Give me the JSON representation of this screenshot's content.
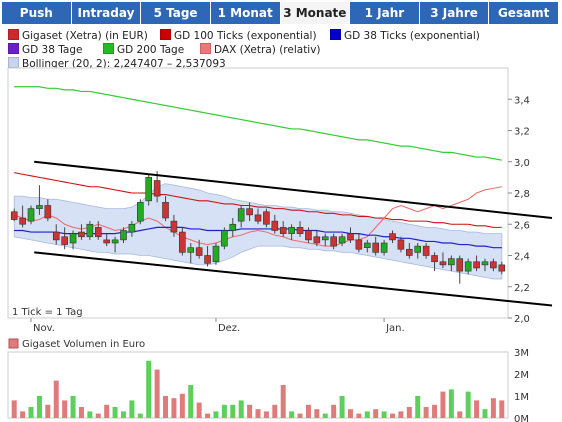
{
  "tabs": [
    {
      "label": "Push",
      "active": false
    },
    {
      "label": "Intraday",
      "active": false
    },
    {
      "label": "5 Tage",
      "active": false
    },
    {
      "label": "1 Monat",
      "active": false
    },
    {
      "label": "3 Monate",
      "active": true
    },
    {
      "label": "1 Jahr",
      "active": false
    },
    {
      "label": "3 Jahre",
      "active": false
    },
    {
      "label": "Gesamt",
      "active": false
    }
  ],
  "legend": {
    "row1": [
      {
        "label": "Gigaset (Xetra) (in EUR)",
        "color": "#cc2a2a"
      },
      {
        "label": "GD 100 Ticks (exponential)",
        "color": "#cc0000"
      },
      {
        "label": "GD 38 Ticks (exponential)",
        "color": "#0000cc"
      }
    ],
    "row2": [
      {
        "label": "GD 38 Tage",
        "color": "#6a1fc8"
      },
      {
        "label": "GD 200 Tage",
        "color": "#22bb22"
      },
      {
        "label": "DAX (Xetra) (relativ)",
        "color": "#ee7777"
      }
    ],
    "row3": [
      {
        "label": "Bollinger (20, 2): 2,247407 – 2,537093",
        "color": "#c8d4ef"
      }
    ]
  },
  "tick_note": "1 Tick = 1 Tag",
  "volume_title": "Gigaset Volumen in Euro",
  "colors": {
    "up": "#22aa22",
    "down": "#cc3333",
    "ma38": "#2020cc",
    "ma100": "#cc1111",
    "ma200": "#33cc33",
    "dax": "#ee6666",
    "boll": "#d6e1f6",
    "boll_edge": "#a9badf",
    "vol": "#e07b7b",
    "vol_up": "#5ccf5c"
  },
  "chart_data": [
    {
      "type": "candlestick",
      "title": "",
      "x_labels": [
        "Nov.",
        "Dez.",
        "Jan."
      ],
      "ylim": [
        2.0,
        3.6
      ],
      "y_ticks": [
        "2,0",
        "2,2",
        "2,4",
        "2,6",
        "2,8",
        "3,0",
        "3,2",
        "3,4"
      ],
      "y_tick_values": [
        2.0,
        2.2,
        2.4,
        2.6,
        2.8,
        3.0,
        3.2,
        3.4
      ],
      "candles": [
        [
          2.68,
          2.7,
          2.62,
          2.63
        ],
        [
          2.64,
          2.72,
          2.58,
          2.6
        ],
        [
          2.62,
          2.72,
          2.6,
          2.7
        ],
        [
          2.7,
          2.85,
          2.66,
          2.72
        ],
        [
          2.72,
          2.76,
          2.62,
          2.64
        ],
        [
          2.55,
          2.6,
          2.47,
          2.5
        ],
        [
          2.52,
          2.58,
          2.44,
          2.47
        ],
        [
          2.48,
          2.56,
          2.44,
          2.54
        ],
        [
          2.55,
          2.6,
          2.5,
          2.52
        ],
        [
          2.52,
          2.62,
          2.5,
          2.6
        ],
        [
          2.58,
          2.62,
          2.5,
          2.52
        ],
        [
          2.5,
          2.54,
          2.46,
          2.48
        ],
        [
          2.48,
          2.52,
          2.42,
          2.5
        ],
        [
          2.5,
          2.58,
          2.48,
          2.56
        ],
        [
          2.55,
          2.62,
          2.52,
          2.6
        ],
        [
          2.62,
          2.76,
          2.6,
          2.74
        ],
        [
          2.75,
          2.92,
          2.72,
          2.9
        ],
        [
          2.88,
          2.94,
          2.74,
          2.78
        ],
        [
          2.74,
          2.78,
          2.62,
          2.64
        ],
        [
          2.62,
          2.66,
          2.52,
          2.55
        ],
        [
          2.55,
          2.58,
          2.4,
          2.42
        ],
        [
          2.42,
          2.48,
          2.35,
          2.45
        ],
        [
          2.45,
          2.5,
          2.38,
          2.4
        ],
        [
          2.4,
          2.46,
          2.33,
          2.35
        ],
        [
          2.36,
          2.48,
          2.34,
          2.46
        ],
        [
          2.46,
          2.58,
          2.44,
          2.56
        ],
        [
          2.56,
          2.64,
          2.52,
          2.6
        ],
        [
          2.62,
          2.72,
          2.58,
          2.7
        ],
        [
          2.7,
          2.74,
          2.62,
          2.66
        ],
        [
          2.66,
          2.7,
          2.6,
          2.62
        ],
        [
          2.68,
          2.7,
          2.58,
          2.6
        ],
        [
          2.62,
          2.66,
          2.54,
          2.56
        ],
        [
          2.58,
          2.62,
          2.52,
          2.54
        ],
        [
          2.54,
          2.6,
          2.5,
          2.58
        ],
        [
          2.58,
          2.62,
          2.52,
          2.54
        ],
        [
          2.56,
          2.58,
          2.48,
          2.5
        ],
        [
          2.52,
          2.56,
          2.46,
          2.48
        ],
        [
          2.5,
          2.54,
          2.46,
          2.52
        ],
        [
          2.52,
          2.54,
          2.44,
          2.46
        ],
        [
          2.48,
          2.54,
          2.46,
          2.52
        ],
        [
          2.54,
          2.58,
          2.48,
          2.5
        ],
        [
          2.5,
          2.54,
          2.42,
          2.44
        ],
        [
          2.45,
          2.5,
          2.42,
          2.48
        ],
        [
          2.48,
          2.52,
          2.4,
          2.42
        ],
        [
          2.42,
          2.5,
          2.4,
          2.48
        ],
        [
          2.54,
          2.56,
          2.48,
          2.5
        ],
        [
          2.5,
          2.52,
          2.42,
          2.44
        ],
        [
          2.44,
          2.48,
          2.38,
          2.4
        ],
        [
          2.42,
          2.48,
          2.38,
          2.46
        ],
        [
          2.46,
          2.48,
          2.38,
          2.4
        ],
        [
          2.4,
          2.42,
          2.3,
          2.36
        ],
        [
          2.36,
          2.42,
          2.32,
          2.34
        ],
        [
          2.34,
          2.4,
          2.3,
          2.38
        ],
        [
          2.38,
          2.4,
          2.22,
          2.3
        ],
        [
          2.3,
          2.38,
          2.28,
          2.36
        ],
        [
          2.36,
          2.4,
          2.3,
          2.32
        ],
        [
          2.34,
          2.38,
          2.3,
          2.36
        ],
        [
          2.36,
          2.38,
          2.3,
          2.32
        ],
        [
          2.34,
          2.36,
          2.28,
          2.3
        ]
      ],
      "ma38": [
        2.56,
        2.56,
        2.55,
        2.55,
        2.55,
        2.55,
        2.54,
        2.54,
        2.54,
        2.54,
        2.54,
        2.54,
        2.54,
        2.55,
        2.55,
        2.56,
        2.57,
        2.58,
        2.58,
        2.58,
        2.58,
        2.57,
        2.57,
        2.56,
        2.56,
        2.56,
        2.56,
        2.57,
        2.57,
        2.57,
        2.57,
        2.57,
        2.57,
        2.57,
        2.56,
        2.56,
        2.56,
        2.55,
        2.55,
        2.55,
        2.54,
        2.54,
        2.53,
        2.53,
        2.52,
        2.52,
        2.51,
        2.51,
        2.5,
        2.49,
        2.49,
        2.48,
        2.48,
        2.47,
        2.47,
        2.46,
        2.46,
        2.45,
        2.45
      ],
      "ma100": [
        2.93,
        2.92,
        2.91,
        2.9,
        2.89,
        2.88,
        2.87,
        2.86,
        2.85,
        2.84,
        2.84,
        2.83,
        2.82,
        2.81,
        2.8,
        2.8,
        2.8,
        2.79,
        2.79,
        2.78,
        2.77,
        2.76,
        2.75,
        2.75,
        2.74,
        2.73,
        2.73,
        2.72,
        2.72,
        2.71,
        2.71,
        2.7,
        2.7,
        2.69,
        2.69,
        2.68,
        2.68,
        2.67,
        2.67,
        2.66,
        2.66,
        2.65,
        2.65,
        2.64,
        2.64,
        2.63,
        2.63,
        2.62,
        2.62,
        2.62,
        2.61,
        2.61,
        2.6,
        2.6,
        2.6,
        2.59,
        2.59,
        2.58,
        2.58
      ],
      "ma200": [
        3.48,
        3.48,
        3.48,
        3.48,
        3.47,
        3.47,
        3.46,
        3.46,
        3.45,
        3.45,
        3.44,
        3.43,
        3.42,
        3.41,
        3.4,
        3.39,
        3.38,
        3.37,
        3.36,
        3.35,
        3.34,
        3.33,
        3.32,
        3.31,
        3.3,
        3.29,
        3.28,
        3.27,
        3.26,
        3.25,
        3.24,
        3.23,
        3.22,
        3.21,
        3.21,
        3.2,
        3.19,
        3.18,
        3.17,
        3.16,
        3.15,
        3.14,
        3.14,
        3.13,
        3.12,
        3.11,
        3.1,
        3.1,
        3.09,
        3.08,
        3.07,
        3.06,
        3.06,
        3.05,
        3.04,
        3.03,
        3.03,
        3.02,
        3.01
      ],
      "dax": [
        2.66,
        2.64,
        2.62,
        2.63,
        2.66,
        2.64,
        2.6,
        2.58,
        2.57,
        2.58,
        2.6,
        2.58,
        2.56,
        2.57,
        2.59,
        2.62,
        2.64,
        2.62,
        2.58,
        2.55,
        2.52,
        2.5,
        2.48,
        2.47,
        2.48,
        2.5,
        2.52,
        2.53,
        2.55,
        2.56,
        2.55,
        2.53,
        2.52,
        2.5,
        2.49,
        2.48,
        2.47,
        2.46,
        2.46,
        2.48,
        2.5,
        2.5,
        2.52,
        2.58,
        2.64,
        2.7,
        2.72,
        2.7,
        2.68,
        2.7,
        2.72,
        2.7,
        2.72,
        2.74,
        2.76,
        2.8,
        2.82,
        2.83,
        2.84
      ],
      "boll_upper": [
        2.78,
        2.78,
        2.77,
        2.77,
        2.76,
        2.76,
        2.75,
        2.74,
        2.73,
        2.72,
        2.71,
        2.7,
        2.7,
        2.7,
        2.71,
        2.74,
        2.79,
        2.84,
        2.86,
        2.85,
        2.84,
        2.83,
        2.82,
        2.8,
        2.79,
        2.78,
        2.76,
        2.75,
        2.74,
        2.73,
        2.72,
        2.72,
        2.71,
        2.71,
        2.7,
        2.7,
        2.69,
        2.69,
        2.68,
        2.68,
        2.67,
        2.66,
        2.65,
        2.64,
        2.63,
        2.62,
        2.61,
        2.6,
        2.59,
        2.58,
        2.58,
        2.57,
        2.56,
        2.56,
        2.55,
        2.55,
        2.54,
        2.54,
        2.54
      ],
      "boll_lower": [
        2.52,
        2.51,
        2.5,
        2.49,
        2.48,
        2.47,
        2.46,
        2.45,
        2.44,
        2.43,
        2.42,
        2.42,
        2.41,
        2.41,
        2.41,
        2.4,
        2.4,
        2.39,
        2.38,
        2.37,
        2.36,
        2.35,
        2.34,
        2.34,
        2.35,
        2.37,
        2.39,
        2.42,
        2.44,
        2.46,
        2.46,
        2.46,
        2.46,
        2.45,
        2.45,
        2.44,
        2.44,
        2.43,
        2.43,
        2.42,
        2.42,
        2.41,
        2.4,
        2.39,
        2.38,
        2.37,
        2.36,
        2.35,
        2.34,
        2.33,
        2.32,
        2.31,
        2.3,
        2.29,
        2.28,
        2.27,
        2.26,
        2.25,
        2.25
      ],
      "trend_upper": [
        [
          0,
          3.0
        ],
        [
          59,
          2.64
        ]
      ],
      "trend_lower": [
        [
          0,
          2.42
        ],
        [
          59,
          2.08
        ]
      ],
      "grid": false
    },
    {
      "type": "bar",
      "title": "Gigaset Volumen in Euro",
      "ylim": [
        0,
        3
      ],
      "y_ticks": [
        "0M",
        "1M",
        "2M",
        "3M"
      ],
      "y_tick_values": [
        0,
        1,
        2,
        3
      ],
      "values": [
        0.8,
        0.3,
        0.5,
        1.0,
        0.6,
        1.7,
        0.8,
        1.0,
        0.5,
        0.3,
        0.2,
        0.6,
        0.5,
        0.3,
        0.8,
        0.2,
        2.6,
        2.2,
        1.0,
        0.9,
        1.1,
        1.5,
        0.7,
        0.2,
        0.3,
        0.6,
        0.6,
        0.8,
        0.6,
        0.4,
        0.3,
        0.6,
        1.5,
        0.3,
        0.2,
        0.6,
        0.4,
        0.2,
        0.6,
        1.0,
        0.4,
        0.2,
        0.3,
        0.4,
        0.3,
        0.2,
        0.3,
        0.5,
        1.0,
        0.5,
        0.6,
        1.2,
        1.3,
        0.3,
        1.2,
        0.8,
        0.4,
        0.9,
        0.8
      ],
      "grid": false
    }
  ]
}
